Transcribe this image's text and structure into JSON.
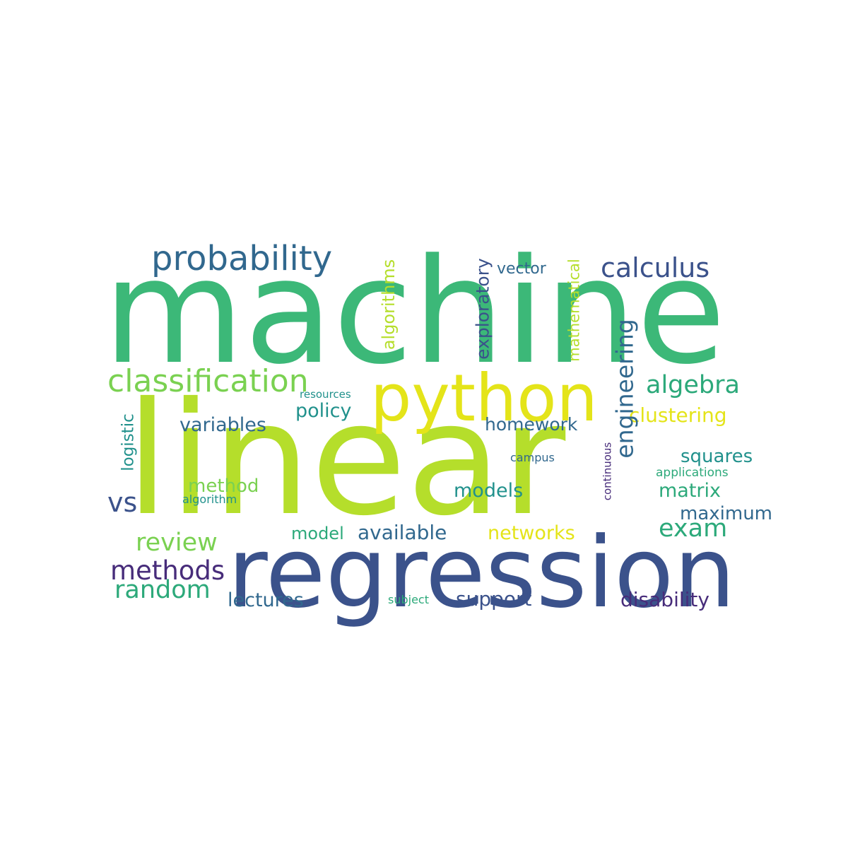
{
  "wordcloud": {
    "palette": {
      "dark_purple": "#472c7a",
      "indigo": "#3b528b",
      "steel_blue": "#31688e",
      "teal": "#21918c",
      "sea_green": "#2ca97a",
      "green": "#3cb878",
      "lime": "#7ad151",
      "yellow_green": "#b5de2b",
      "yellow": "#e4e419"
    },
    "words": {
      "machine": "machine",
      "linear": "linear",
      "regression": "regression",
      "python": "python",
      "probability": "probability",
      "calculus": "calculus",
      "classification": "classification",
      "algebra": "algebra",
      "engineering": "engineering",
      "algorithms": "algorithms",
      "exploratory": "exploratory",
      "mathematical": "mathematical",
      "vector": "vector",
      "clustering": "clustering",
      "policy": "policy",
      "variables": "variables",
      "homework": "homework",
      "resources": "resources",
      "logistic": "logistic",
      "campus": "campus",
      "continuous": "continuous",
      "squares": "squares",
      "applications": "applications",
      "method": "method",
      "models": "models",
      "matrix": "matrix",
      "vs": "vs",
      "algorithm": "algorithm",
      "maximum": "maximum",
      "exam": "exam",
      "model": "model",
      "available": "available",
      "networks": "networks",
      "review": "review",
      "methods": "methods",
      "random": "random",
      "lectures": "lectures",
      "subject": "subject",
      "support": "support",
      "disability": "disability"
    }
  }
}
